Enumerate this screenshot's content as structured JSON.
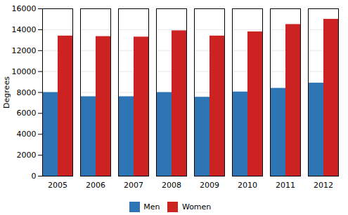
{
  "chart_data": {
    "type": "bar",
    "categories": [
      "2005",
      "2006",
      "2007",
      "2008",
      "2009",
      "2010",
      "2011",
      "2012"
    ],
    "series": [
      {
        "name": "Men",
        "color": "#2E75B6",
        "values": [
          8000,
          7600,
          7600,
          8000,
          7550,
          8050,
          8400,
          8900
        ]
      },
      {
        "name": "Women",
        "color": "#CC2222",
        "values": [
          13400,
          13350,
          13300,
          13900,
          13400,
          13800,
          14500,
          15000
        ]
      }
    ],
    "ylabel": "Degrees",
    "ylim": [
      0,
      16000
    ],
    "yticks": [
      0,
      2000,
      4000,
      6000,
      8000,
      10000,
      12000,
      14000,
      16000
    ],
    "grid": true,
    "legend": "bottom"
  }
}
